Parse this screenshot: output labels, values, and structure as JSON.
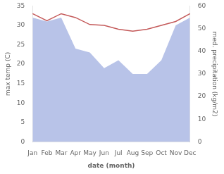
{
  "chart_data": {
    "type": "line",
    "categories": [
      "Jan",
      "Feb",
      "Mar",
      "Apr",
      "May",
      "Jun",
      "Jul",
      "Aug",
      "Sep",
      "Oct",
      "Nov",
      "Dec"
    ],
    "xlabel": "date (month)",
    "ylabel": "max temp (C)",
    "y2label": "med. precipitation (kg/m2)",
    "ylim": [
      0,
      35
    ],
    "yticks": [
      0,
      5,
      10,
      15,
      20,
      25,
      30,
      35
    ],
    "y2lim": [
      0,
      60
    ],
    "y2ticks": [
      0,
      10,
      20,
      30,
      40,
      50,
      60
    ],
    "grid": false,
    "series": [
      {
        "type": "area",
        "color": "#b8c3e8",
        "values": [
          32.0,
          31.0,
          32.0,
          24.0,
          23.0,
          19.0,
          21.0,
          17.5,
          17.5,
          21.0,
          30.0,
          32.0
        ]
      },
      {
        "type": "line",
        "color": "#c45a5a",
        "values": [
          33.0,
          31.2,
          33.0,
          32.0,
          30.2,
          30.0,
          29.0,
          28.5,
          29.0,
          30.0,
          31.0,
          33.0
        ]
      }
    ]
  }
}
